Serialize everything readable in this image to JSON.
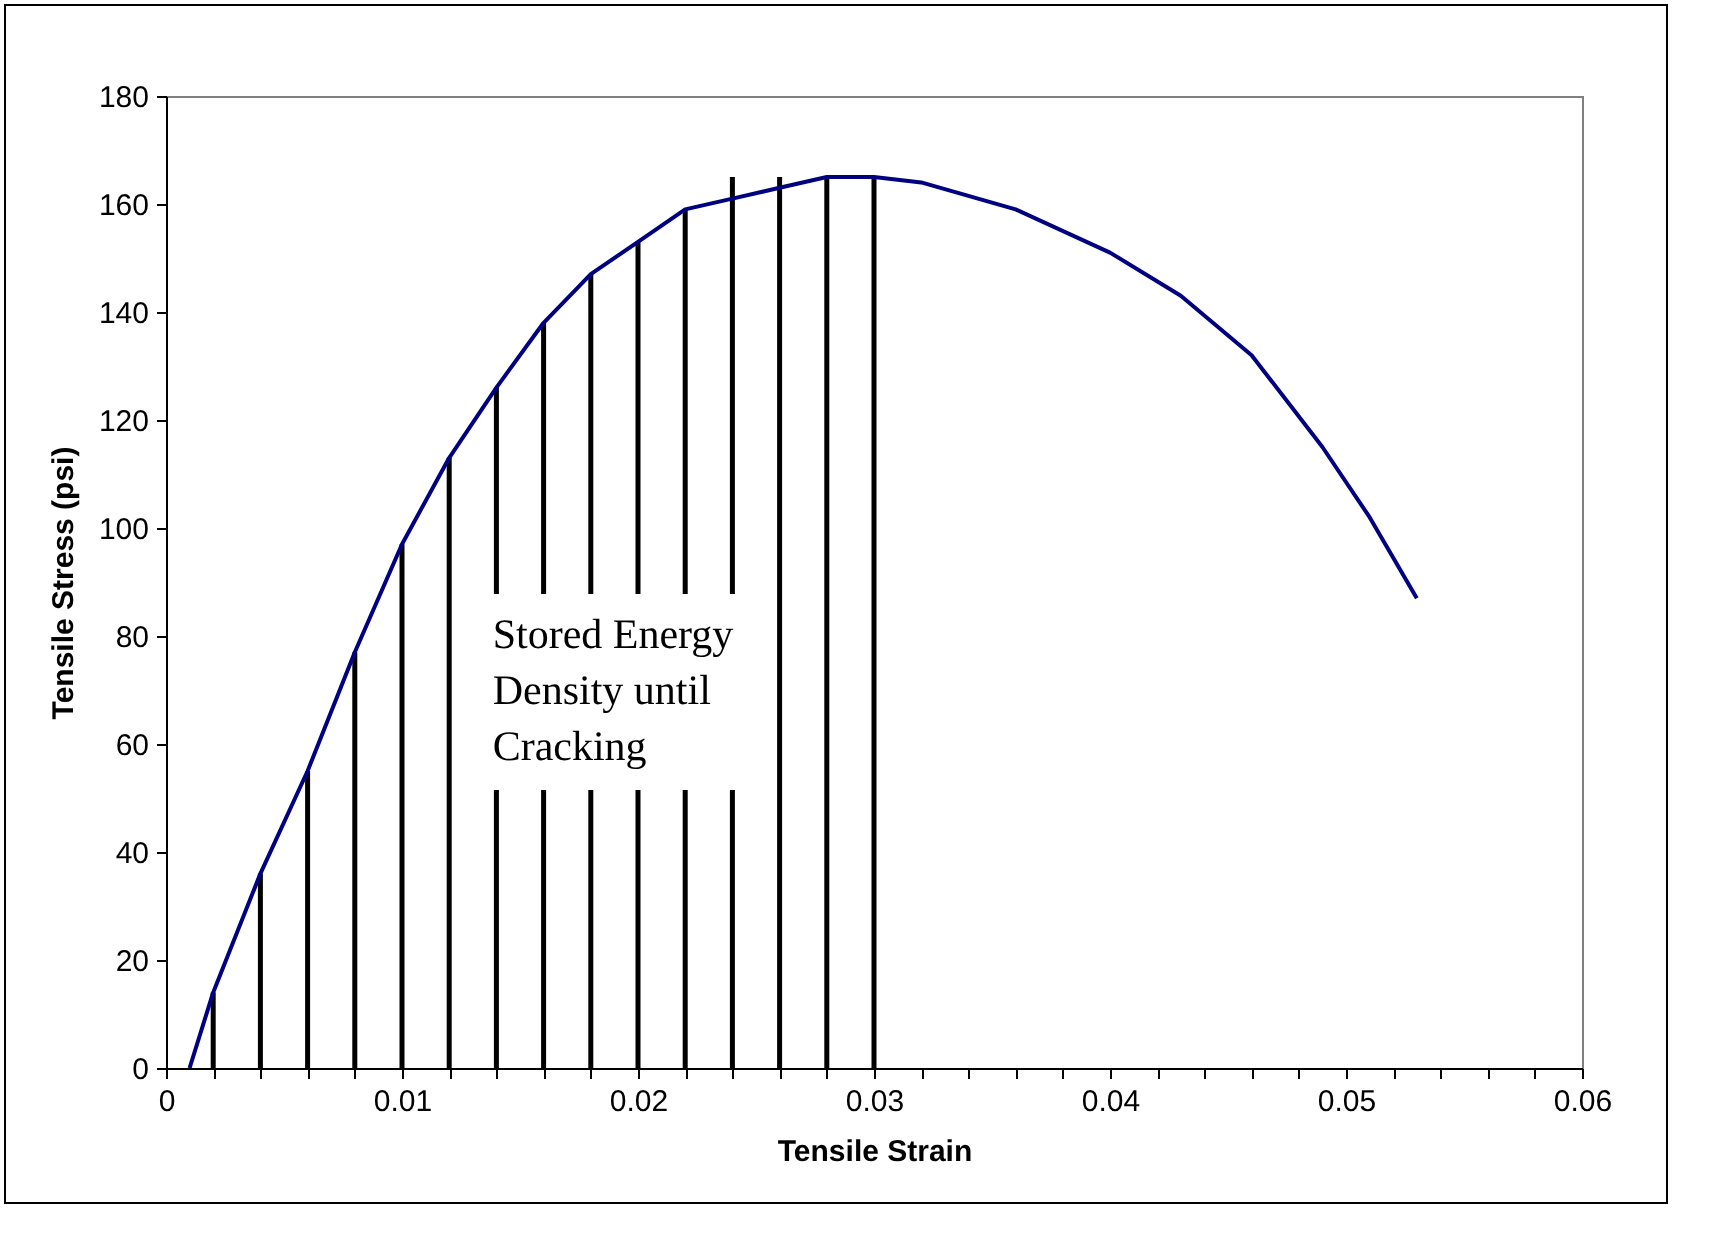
{
  "chart_data": {
    "type": "line",
    "xlabel": "Tensile Strain",
    "ylabel": "Tensile Stress (psi)",
    "series": [
      {
        "color": "#000080",
        "x": [
          0.001,
          0.002,
          0.004,
          0.006,
          0.008,
          0.01,
          0.012,
          0.014,
          0.016,
          0.018,
          0.02,
          0.022,
          0.024,
          0.026,
          0.028,
          0.03,
          0.032,
          0.036,
          0.04,
          0.043,
          0.046,
          0.049,
          0.051,
          0.053
        ],
        "values": [
          0,
          14,
          36,
          55,
          77,
          97,
          113,
          126,
          138,
          147,
          153,
          159,
          161,
          163,
          165,
          165,
          164,
          159,
          151,
          143,
          132,
          115,
          102,
          87
        ]
      },
      {
        "type": "bar",
        "color": "#000000",
        "x": [
          0.002,
          0.004,
          0.006,
          0.008,
          0.01,
          0.012,
          0.014,
          0.016,
          0.018,
          0.02,
          0.022,
          0.024,
          0.026,
          0.028,
          0.03
        ],
        "values": [
          14,
          36,
          55,
          77,
          97,
          113,
          126,
          138,
          147,
          153,
          159,
          165,
          165,
          165,
          165
        ]
      }
    ],
    "annotations": [
      {
        "text": "Stored Energy Density until Cracking",
        "x": 0.0138,
        "y": 70
      }
    ],
    "xlim": [
      0,
      0.06
    ],
    "ylim": [
      0,
      180
    ],
    "xticks": [
      0,
      {
        "value": 0.002,
        "label": null
      },
      {
        "value": 0.004,
        "label": null
      },
      {
        "value": 0.006,
        "label": null
      },
      {
        "value": 0.008,
        "label": null
      },
      0.01,
      {
        "value": 0.012,
        "label": null
      },
      {
        "value": 0.014,
        "label": null
      },
      {
        "value": 0.016,
        "label": null
      },
      {
        "value": 0.018,
        "label": null
      },
      0.02,
      {
        "value": 0.022,
        "label": null
      },
      {
        "value": 0.024,
        "label": null
      },
      {
        "value": 0.026,
        "label": null
      },
      {
        "value": 0.028,
        "label": null
      },
      0.03,
      {
        "value": 0.032,
        "label": null
      },
      {
        "value": 0.034,
        "label": null
      },
      {
        "value": 0.036,
        "label": null
      },
      {
        "value": 0.038,
        "label": null
      },
      0.04,
      {
        "value": 0.042,
        "label": null
      },
      {
        "value": 0.044,
        "label": null
      },
      {
        "value": 0.046,
        "label": null
      },
      {
        "value": 0.048,
        "label": null
      },
      0.05,
      {
        "value": 0.052,
        "label": null
      },
      {
        "value": 0.054,
        "label": null
      },
      {
        "value": 0.056,
        "label": null
      },
      {
        "value": 0.058,
        "label": null
      },
      0.06
    ],
    "yticks": [
      0,
      20,
      40,
      60,
      80,
      100,
      120,
      140,
      160,
      180
    ],
    "grid": false
  }
}
